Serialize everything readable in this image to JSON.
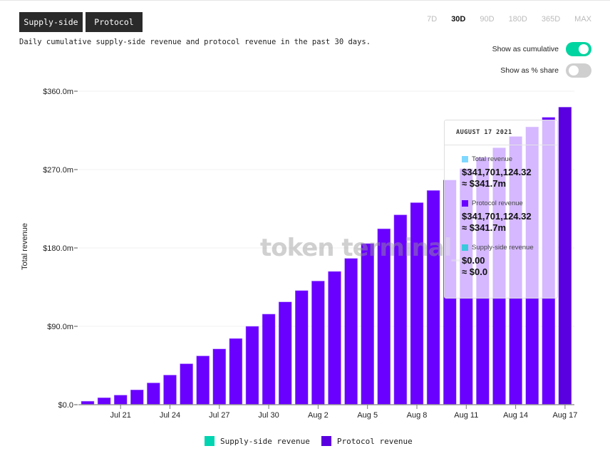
{
  "header": {
    "tabs": [
      {
        "label": "Supply-side"
      },
      {
        "label": "Protocol"
      }
    ],
    "description": "Daily cumulative supply-side revenue and protocol revenue in the past 30 days.",
    "periods": [
      "7D",
      "30D",
      "90D",
      "180D",
      "365D",
      "MAX"
    ],
    "active_period": "30D",
    "toggles": [
      {
        "label": "Show as cumulative",
        "on": true
      },
      {
        "label": "Show as % share",
        "on": false
      }
    ]
  },
  "watermark": "token terminal_",
  "colors": {
    "protocol": "#6a00ff",
    "supply": "#00d4b0",
    "total": "#7fd8ff",
    "supply_tt": "#39c9dc"
  },
  "tooltip": {
    "date": "AUGUST 17 2021",
    "items": [
      {
        "label": "Total revenue",
        "value": "$341,701,124.32",
        "approx": "≈ $341.7m"
      },
      {
        "label": "Protocol revenue",
        "value": "$341,701,124.32",
        "approx": "≈ $341.7m"
      },
      {
        "label": "Supply-side revenue",
        "value": "$0.00",
        "approx": "≈ $0.0"
      }
    ]
  },
  "legend": [
    {
      "label": "Supply-side revenue"
    },
    {
      "label": "Protocol revenue"
    }
  ],
  "chart_data": {
    "type": "bar",
    "ylabel": "Total revenue",
    "ylim": [
      0,
      360
    ],
    "yticks": [
      0,
      90,
      180,
      270,
      360
    ],
    "ytick_labels": [
      "$0.0",
      "$90.0m",
      "$180.0m",
      "$270.0m",
      "$360.0m"
    ],
    "categories": [
      "Jul 19",
      "Jul 20",
      "Jul 21",
      "Jul 22",
      "Jul 23",
      "Jul 24",
      "Jul 25",
      "Jul 26",
      "Jul 27",
      "Jul 28",
      "Jul 29",
      "Jul 30",
      "Jul 31",
      "Aug 1",
      "Aug 2",
      "Aug 3",
      "Aug 4",
      "Aug 5",
      "Aug 6",
      "Aug 7",
      "Aug 8",
      "Aug 9",
      "Aug 10",
      "Aug 11",
      "Aug 12",
      "Aug 13",
      "Aug 14",
      "Aug 15",
      "Aug 16",
      "Aug 17"
    ],
    "xtick_labels": [
      "Jul 21",
      "Jul 24",
      "Jul 27",
      "Jul 30",
      "Aug 2",
      "Aug 5",
      "Aug 8",
      "Aug 11",
      "Aug 14",
      "Aug 17"
    ],
    "series": [
      {
        "name": "Supply-side revenue",
        "values": [
          0,
          0,
          0,
          0,
          0,
          0,
          0,
          0,
          0,
          0,
          0,
          0,
          0,
          0,
          0,
          0,
          0,
          0,
          0,
          0,
          0,
          0,
          0,
          0,
          0,
          0,
          0,
          0,
          0,
          0
        ]
      },
      {
        "name": "Protocol revenue",
        "values": [
          4,
          8,
          11,
          17,
          25,
          34,
          47,
          56,
          64,
          76,
          90,
          104,
          118,
          131,
          142,
          153,
          168,
          185,
          202,
          218,
          232,
          246,
          258,
          271,
          284,
          295,
          308,
          319,
          330,
          341.7
        ]
      }
    ],
    "highlighted": "Aug 17",
    "grid": true,
    "legend_position": "bottom"
  }
}
